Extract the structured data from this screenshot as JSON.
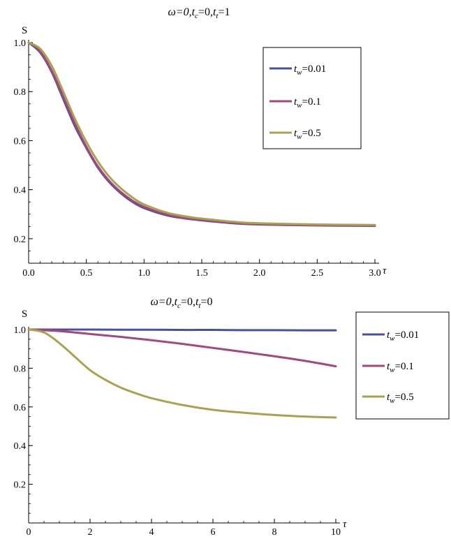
{
  "chart_data": [
    {
      "type": "line",
      "title": "ω=0,t_c=0,t_t=1",
      "title_parts": {
        "omega": "ω=0,",
        "tc_base": "t",
        "tc_sub": "c",
        "tc_val": "=0,",
        "tt_base": "t",
        "tt_sub": "t",
        "tt_val": "=1"
      },
      "ylabel": "S",
      "xlabel": "τ",
      "xlim": [
        0,
        3.0
      ],
      "ylim": [
        0.1,
        1.0
      ],
      "x_ticks": [
        "0.0",
        "0.5",
        "1.0",
        "1.5",
        "2.0",
        "2.5",
        "3.0"
      ],
      "y_ticks": [
        "0.2",
        "0.4",
        "0.6",
        "0.8",
        "1.0"
      ],
      "legend_position": "top-right",
      "series": [
        {
          "name": "t_w=0.01",
          "legend_base": "t",
          "legend_sub": "w",
          "legend_val": "=0.01",
          "color": "#4b4fa3",
          "x": [
            0,
            0.1,
            0.2,
            0.3,
            0.4,
            0.5,
            0.6,
            0.7,
            0.8,
            0.9,
            1.0,
            1.2,
            1.4,
            1.6,
            1.8,
            2.0,
            2.5,
            3.0
          ],
          "y": [
            1.0,
            0.96,
            0.88,
            0.77,
            0.66,
            0.57,
            0.49,
            0.43,
            0.385,
            0.35,
            0.325,
            0.295,
            0.28,
            0.27,
            0.262,
            0.258,
            0.254,
            0.252
          ]
        },
        {
          "name": "t_w=0.1",
          "legend_base": "t",
          "legend_sub": "w",
          "legend_val": "=0.1",
          "color": "#a3487a",
          "x": [
            0,
            0.1,
            0.2,
            0.3,
            0.4,
            0.5,
            0.6,
            0.7,
            0.8,
            0.9,
            1.0,
            1.2,
            1.4,
            1.6,
            1.8,
            2.0,
            2.5,
            3.0
          ],
          "y": [
            1.0,
            0.965,
            0.885,
            0.78,
            0.67,
            0.575,
            0.495,
            0.435,
            0.39,
            0.355,
            0.33,
            0.298,
            0.282,
            0.272,
            0.264,
            0.259,
            0.255,
            0.253
          ]
        },
        {
          "name": "t_w=0.5",
          "legend_base": "t",
          "legend_sub": "w",
          "legend_val": "=0.5",
          "color": "#a9a24f",
          "x": [
            0,
            0.1,
            0.2,
            0.3,
            0.4,
            0.5,
            0.6,
            0.7,
            0.8,
            0.9,
            1.0,
            1.2,
            1.4,
            1.6,
            1.8,
            2.0,
            2.5,
            3.0
          ],
          "y": [
            1.0,
            0.975,
            0.905,
            0.8,
            0.69,
            0.595,
            0.515,
            0.452,
            0.405,
            0.368,
            0.34,
            0.306,
            0.288,
            0.277,
            0.268,
            0.263,
            0.258,
            0.256
          ]
        }
      ]
    },
    {
      "type": "line",
      "title": "ω=0,t_c=0,t_t=0",
      "title_parts": {
        "omega": "ω=0,",
        "tc_base": "t",
        "tc_sub": "c",
        "tc_val": "=0,",
        "tt_base": "t",
        "tt_sub": "t",
        "tt_val": "=0"
      },
      "ylabel": "S",
      "xlabel": "τ",
      "xlim": [
        0,
        10
      ],
      "ylim": [
        0,
        1.0
      ],
      "x_ticks": [
        "0",
        "2",
        "4",
        "6",
        "8",
        "10"
      ],
      "y_ticks": [
        "0.2",
        "0.4",
        "0.6",
        "0.8",
        "1.0"
      ],
      "legend_position": "right",
      "series": [
        {
          "name": "t_w=0.01",
          "legend_base": "t",
          "legend_sub": "w",
          "legend_val": "=0.01",
          "color": "#4b4fa3",
          "x": [
            0,
            1,
            2,
            3,
            4,
            5,
            6,
            7,
            8,
            9,
            10
          ],
          "y": [
            1.0,
            1.0,
            1.0,
            0.999,
            0.999,
            0.998,
            0.998,
            0.997,
            0.997,
            0.996,
            0.996
          ]
        },
        {
          "name": "t_w=0.1",
          "legend_base": "t",
          "legend_sub": "w",
          "legend_val": "=0.1",
          "color": "#a3487a",
          "x": [
            0,
            1,
            2,
            3,
            4,
            5,
            6,
            7,
            8,
            9,
            10
          ],
          "y": [
            1.0,
            0.992,
            0.977,
            0.962,
            0.945,
            0.926,
            0.905,
            0.884,
            0.862,
            0.838,
            0.81
          ]
        },
        {
          "name": "t_w=0.5",
          "legend_base": "t",
          "legend_sub": "w",
          "legend_val": "=0.5",
          "color": "#a9a24f",
          "x": [
            0,
            0.5,
            1,
            1.5,
            2,
            2.5,
            3,
            3.5,
            4,
            5,
            6,
            7,
            8,
            9,
            10
          ],
          "y": [
            1.0,
            0.985,
            0.93,
            0.86,
            0.79,
            0.74,
            0.7,
            0.67,
            0.645,
            0.61,
            0.585,
            0.57,
            0.558,
            0.55,
            0.545
          ]
        }
      ]
    }
  ]
}
